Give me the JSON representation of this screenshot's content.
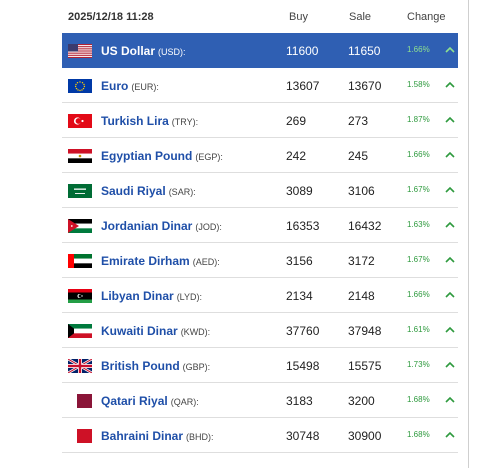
{
  "header": {
    "datetime": "2025/12/18 11:28",
    "buy_label": "Buy",
    "sale_label": "Sale",
    "change_label": "Change"
  },
  "colors": {
    "active_row": "#2f5fb3",
    "currency_name": "#1f4fa8",
    "change_positive": "#2e9a3e"
  },
  "rows": [
    {
      "name": "US Dollar",
      "code": "(USD):",
      "buy": "11600",
      "sale": "11650",
      "change": "1.66%",
      "trend": "up-arrow-icon",
      "flag": "us-flag-icon"
    },
    {
      "name": "Euro",
      "code": "(EUR):",
      "buy": "13607",
      "sale": "13670",
      "change": "1.58%",
      "trend": "up-arrow-icon",
      "flag": "eu-flag-icon"
    },
    {
      "name": "Turkish Lira",
      "code": "(TRY):",
      "buy": "269",
      "sale": "273",
      "change": "1.87%",
      "trend": "up-arrow-icon",
      "flag": "turkey-flag-icon"
    },
    {
      "name": "Egyptian Pound",
      "code": "(EGP):",
      "buy": "242",
      "sale": "245",
      "change": "1.66%",
      "trend": "up-arrow-icon",
      "flag": "egypt-flag-icon"
    },
    {
      "name": "Saudi Riyal",
      "code": "(SAR):",
      "buy": "3089",
      "sale": "3106",
      "change": "1.67%",
      "trend": "up-arrow-icon",
      "flag": "saudi-flag-icon"
    },
    {
      "name": "Jordanian Dinar",
      "code": "(JOD):",
      "buy": "16353",
      "sale": "16432",
      "change": "1.63%",
      "trend": "up-arrow-icon",
      "flag": "jordan-flag-icon"
    },
    {
      "name": "Emirate Dirham",
      "code": "(AED):",
      "buy": "3156",
      "sale": "3172",
      "change": "1.67%",
      "trend": "up-arrow-icon",
      "flag": "uae-flag-icon"
    },
    {
      "name": "Libyan Dinar",
      "code": "(LYD):",
      "buy": "2134",
      "sale": "2148",
      "change": "1.66%",
      "trend": "up-arrow-icon",
      "flag": "libya-flag-icon"
    },
    {
      "name": "Kuwaiti Dinar",
      "code": "(KWD):",
      "buy": "37760",
      "sale": "37948",
      "change": "1.61%",
      "trend": "up-arrow-icon",
      "flag": "kuwait-flag-icon"
    },
    {
      "name": "British Pound",
      "code": "(GBP):",
      "buy": "15498",
      "sale": "15575",
      "change": "1.73%",
      "trend": "up-arrow-icon",
      "flag": "uk-flag-icon"
    },
    {
      "name": "Qatari Riyal",
      "code": "(QAR):",
      "buy": "3183",
      "sale": "3200",
      "change": "1.68%",
      "trend": "up-arrow-icon",
      "flag": "qatar-flag-icon"
    },
    {
      "name": "Bahraini Dinar",
      "code": "(BHD):",
      "buy": "30748",
      "sale": "30900",
      "change": "1.68%",
      "trend": "up-arrow-icon",
      "flag": "bahrain-flag-icon"
    }
  ]
}
